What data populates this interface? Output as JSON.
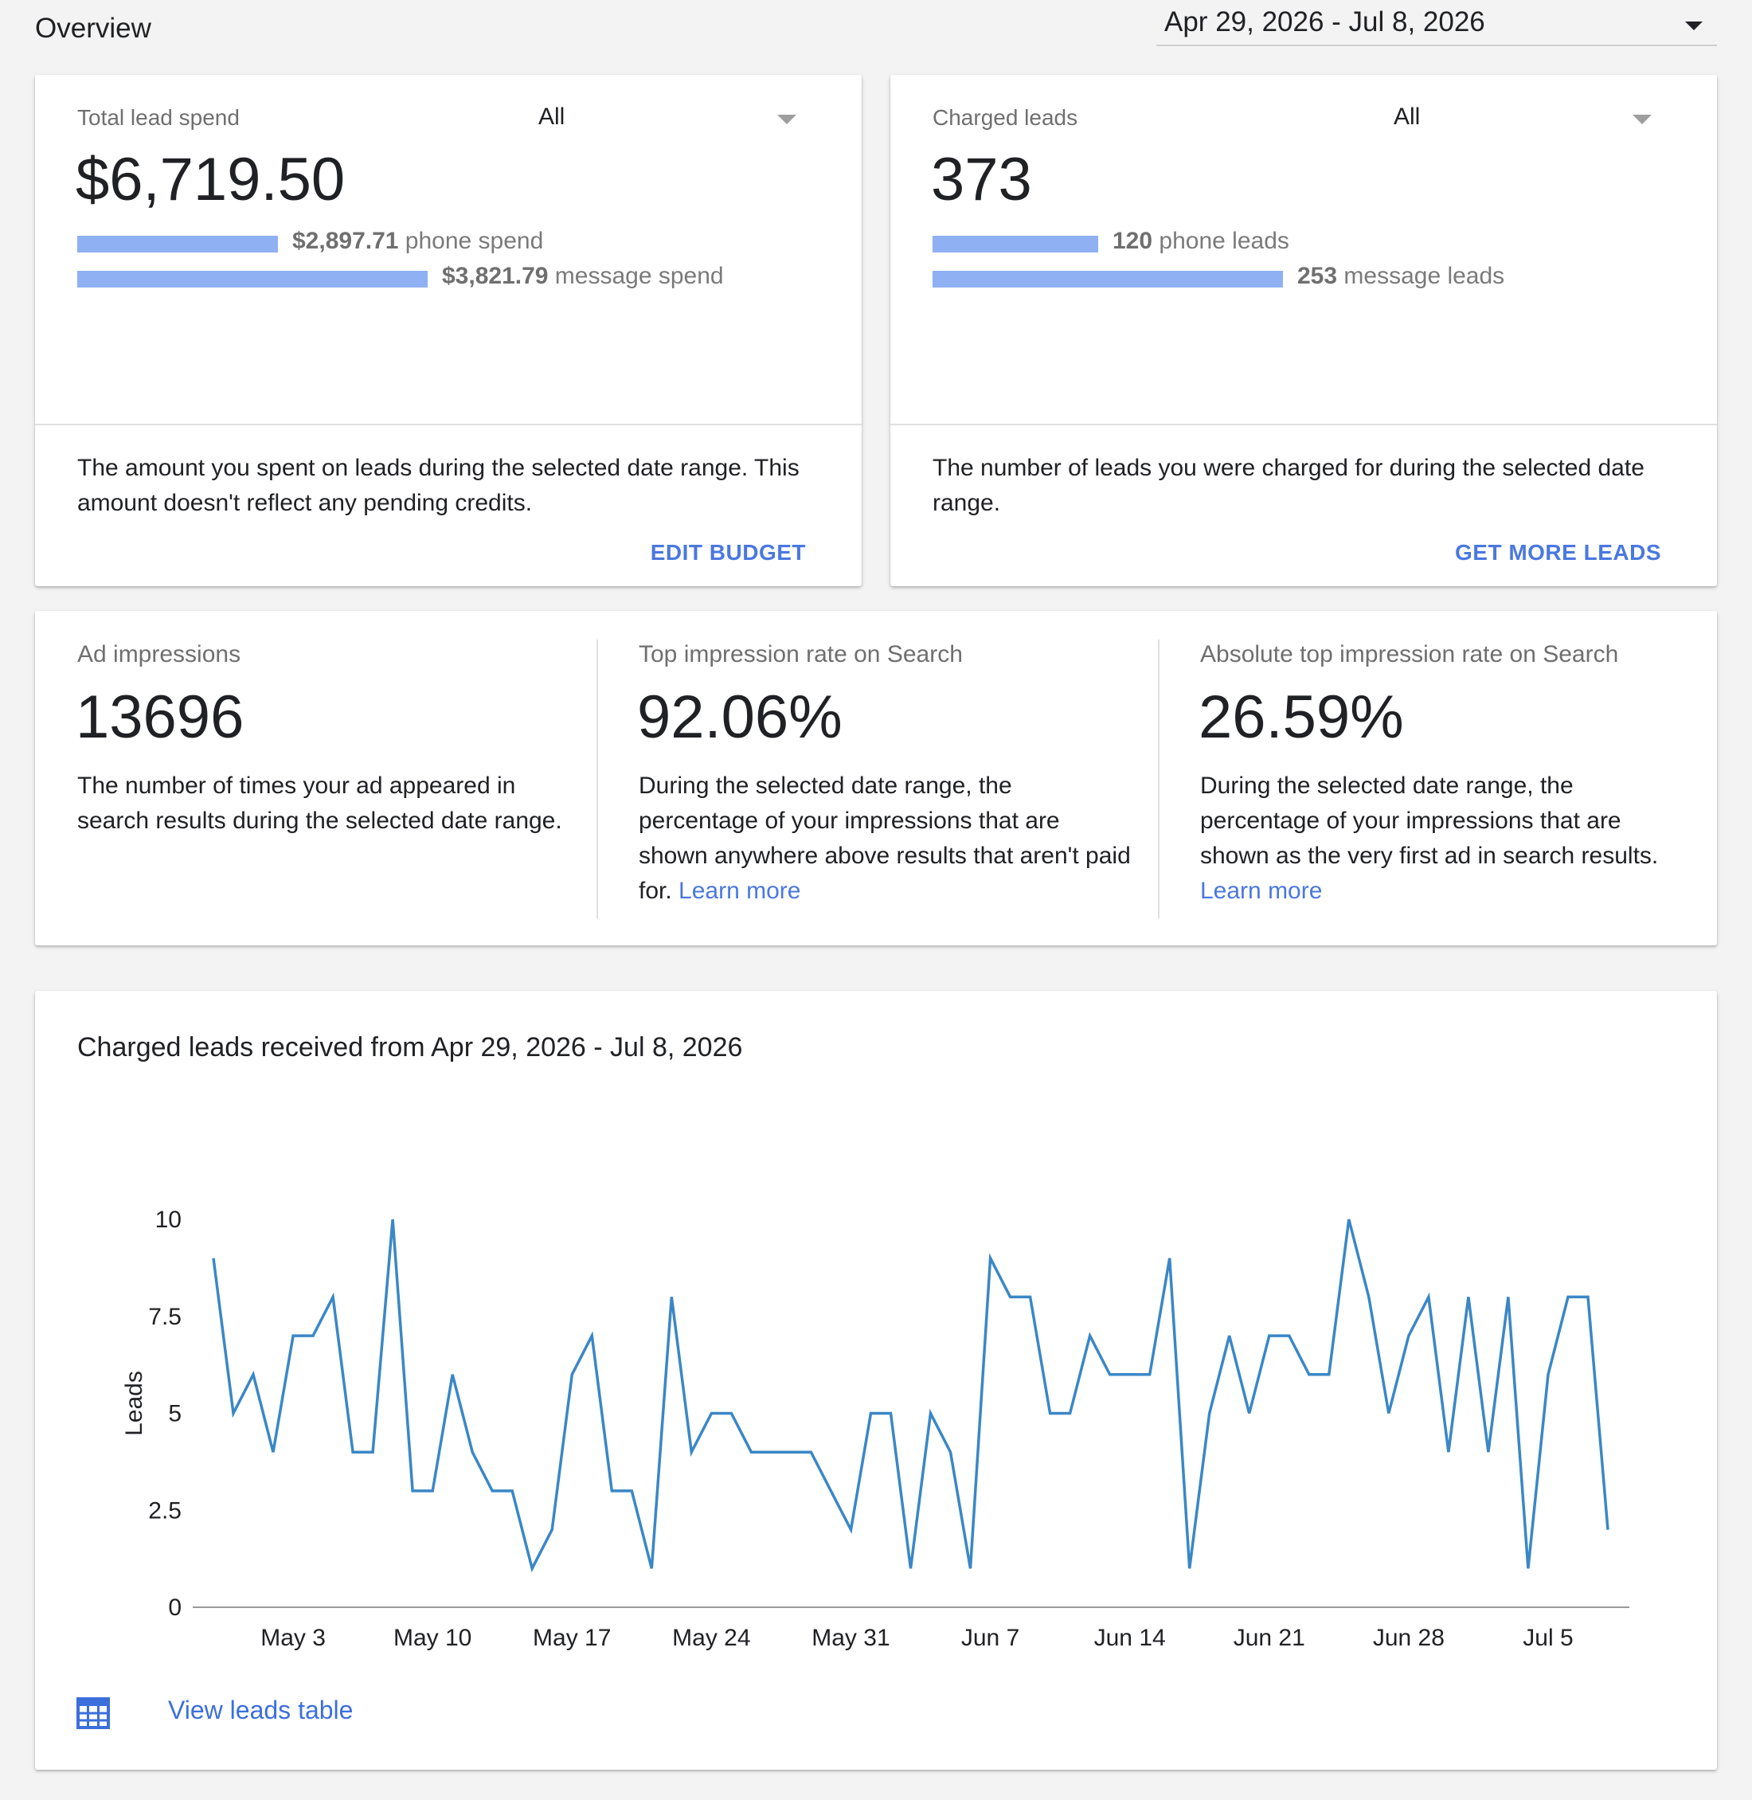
{
  "header": {
    "title": "Overview",
    "date_range": "Apr 29, 2026 - Jul 8, 2026"
  },
  "spend_card": {
    "label": "Total lead spend",
    "filter": "All",
    "value": "$6,719.50",
    "phone_amount": "$2,897.71",
    "phone_text": " phone spend",
    "phone_share": 0.431,
    "message_amount": "$3,821.79",
    "message_text": " message spend",
    "message_share": 0.569,
    "description": "The amount you spent on leads during the selected date range. This amount doesn't reflect any pending credits.",
    "action": "EDIT BUDGET"
  },
  "leads_card": {
    "label": "Charged leads",
    "filter": "All",
    "value": "373",
    "phone_amount": "120",
    "phone_text": " phone leads",
    "phone_count": 120,
    "message_amount": "253",
    "message_text": " message leads",
    "message_count": 253,
    "description": "The number of leads you were charged for during the selected date range.",
    "action": "GET MORE LEADS"
  },
  "metrics": {
    "impressions": {
      "label": "Ad impressions",
      "value": "13696",
      "description": "The number of times your ad appeared in search results during the selected date range."
    },
    "top_rate": {
      "label": "Top impression rate on Search",
      "value": "92.06%",
      "description": "During the selected date range, the percentage of your impressions that are shown anywhere above results that aren't paid for.",
      "link": "Learn more"
    },
    "abs_top_rate": {
      "label": "Absolute top impression rate on Search",
      "value": "26.59%",
      "description": "During the selected date range, the percentage of your impressions that are shown as the very first ad in search results.",
      "link": "Learn more"
    }
  },
  "chart_card": {
    "title": "Charged leads received from Apr 29, 2026 - Jul 8, 2026",
    "view_table": "View leads table"
  },
  "chart_data": {
    "type": "line",
    "title": "Charged leads received from Apr 29, 2026 - Jul 8, 2026",
    "xlabel": "",
    "ylabel": "Leads",
    "ylim": [
      0,
      10
    ],
    "yticks": [
      0,
      2.5,
      5,
      7.5,
      10
    ],
    "ytick_labels": [
      "0",
      "2.5",
      "5",
      "7.5",
      "10"
    ],
    "xlim": [
      "2026-04-29",
      "2026-07-08"
    ],
    "xticks": [
      "2026-05-03",
      "2026-05-10",
      "2026-05-17",
      "2026-05-24",
      "2026-05-31",
      "2026-06-07",
      "2026-06-14",
      "2026-06-21",
      "2026-06-28",
      "2026-07-05"
    ],
    "xtick_labels": [
      "May 3",
      "May 10",
      "May 17",
      "May 24",
      "May 31",
      "Jun 7",
      "Jun 14",
      "Jun 21",
      "Jun 28",
      "Jul 5"
    ],
    "grid": false,
    "series": [
      {
        "color": "#3a87c6",
        "x": [
          "2026-04-29",
          "2026-04-30",
          "2026-05-01",
          "2026-05-02",
          "2026-05-03",
          "2026-05-04",
          "2026-05-05",
          "2026-05-06",
          "2026-05-07",
          "2026-05-08",
          "2026-05-09",
          "2026-05-10",
          "2026-05-11",
          "2026-05-12",
          "2026-05-13",
          "2026-05-14",
          "2026-05-15",
          "2026-05-16",
          "2026-05-17",
          "2026-05-18",
          "2026-05-19",
          "2026-05-20",
          "2026-05-21",
          "2026-05-22",
          "2026-05-23",
          "2026-05-24",
          "2026-05-25",
          "2026-05-26",
          "2026-05-27",
          "2026-05-28",
          "2026-05-29",
          "2026-05-30",
          "2026-05-31",
          "2026-06-01",
          "2026-06-02",
          "2026-06-03",
          "2026-06-04",
          "2026-06-05",
          "2026-06-06",
          "2026-06-07",
          "2026-06-08",
          "2026-06-09",
          "2026-06-10",
          "2026-06-11",
          "2026-06-12",
          "2026-06-13",
          "2026-06-14",
          "2026-06-15",
          "2026-06-16",
          "2026-06-17",
          "2026-06-18",
          "2026-06-19",
          "2026-06-20",
          "2026-06-21",
          "2026-06-22",
          "2026-06-23",
          "2026-06-24",
          "2026-06-25",
          "2026-06-26",
          "2026-06-27",
          "2026-06-28",
          "2026-06-29",
          "2026-06-30",
          "2026-07-01",
          "2026-07-02",
          "2026-07-03",
          "2026-07-04",
          "2026-07-05",
          "2026-07-06",
          "2026-07-07",
          "2026-07-08"
        ],
        "y": [
          9,
          5,
          6,
          4,
          7,
          7,
          8,
          4,
          4,
          10,
          3,
          3,
          6,
          4,
          3,
          3,
          1,
          2,
          6,
          7,
          3,
          3,
          1,
          8,
          4,
          5,
          5,
          4,
          4,
          4,
          4,
          3,
          2,
          5,
          5,
          1,
          5,
          4,
          1,
          9,
          8,
          8,
          5,
          5,
          7,
          6,
          6,
          6,
          9,
          1,
          5,
          7,
          5,
          7,
          7,
          6,
          6,
          10,
          8,
          5,
          7,
          8,
          4,
          8,
          4,
          8,
          1,
          6,
          8,
          8,
          2
        ]
      }
    ]
  }
}
